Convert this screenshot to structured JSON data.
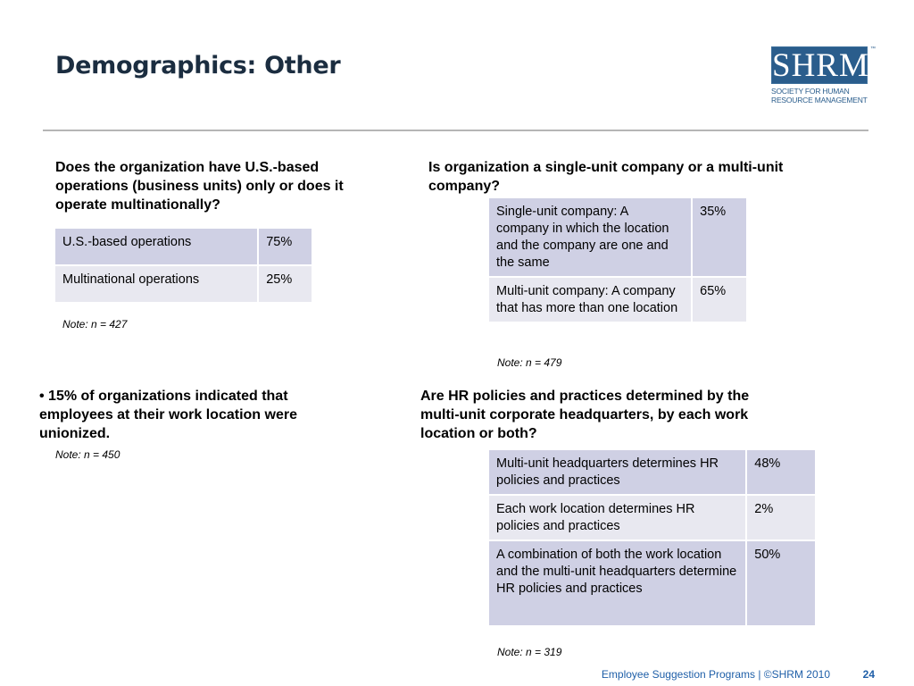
{
  "slide": {
    "title": "Demographics: Other",
    "logo": {
      "letters": "SHRM",
      "tm": "™",
      "line1": "SOCIETY FOR HUMAN",
      "line2": "RESOURCE MANAGEMENT"
    }
  },
  "q1": {
    "question": "Does the organization have U.S.-based operations (business units) only or does it operate multinationally?",
    "rows": [
      {
        "label": "U.S.-based operations",
        "value": "75%"
      },
      {
        "label": "Multinational operations",
        "value": "25%"
      }
    ],
    "note": "Note: n = 427"
  },
  "q2": {
    "question": "Is organization a single-unit company or a multi-unit company?",
    "rows": [
      {
        "label": "Single-unit company: A company in which the location and the company are one and the same",
        "value": "35%"
      },
      {
        "label": "Multi-unit company: A company that has more than one location",
        "value": "65%"
      }
    ],
    "note": "Note: n = 479"
  },
  "q3": {
    "bullet": "• 15% of organizations indicated that employees at their work location were unionized.",
    "note": "Note: n = 450"
  },
  "q4": {
    "question": "Are HR policies and practices determined by the multi-unit corporate headquarters, by each work location or both?",
    "rows": [
      {
        "label": "Multi-unit headquarters determines HR policies and practices",
        "value": "48%"
      },
      {
        "label": "Each work location determines HR policies and practices",
        "value": "2%"
      },
      {
        "label": "A combination of both the work location and the multi-unit headquarters determine HR policies and practices",
        "value": "50%"
      }
    ],
    "note": "Note: n = 319"
  },
  "footer": {
    "text": "Employee Suggestion Programs | ©SHRM 2010",
    "page": "24"
  },
  "colors": {
    "title": "#1b2d40",
    "row_dark": "#cfd0e4",
    "row_light": "#e8e8f0",
    "footer": "#1f5fa8",
    "logo": "#2a5d8c"
  }
}
